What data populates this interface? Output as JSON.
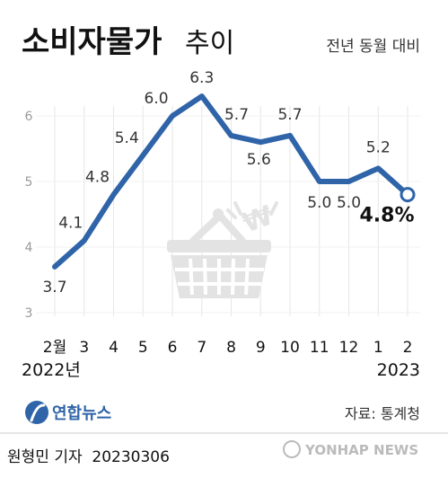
{
  "chart_data": {
    "type": "line",
    "title": "소비자물가",
    "title_suffix": "추이",
    "subtitle": "전년 동월 대비",
    "x": [
      "2월",
      "3",
      "4",
      "5",
      "6",
      "7",
      "8",
      "9",
      "10",
      "11",
      "12",
      "1",
      "2"
    ],
    "year_labels": [
      "2022년",
      "2023"
    ],
    "values": [
      3.7,
      4.1,
      4.8,
      5.4,
      6.0,
      6.3,
      5.7,
      5.6,
      5.7,
      5.0,
      5.0,
      5.2,
      4.8
    ],
    "value_labels": [
      "3.7",
      "4.1",
      "4.8",
      "5.4",
      "6.0",
      "6.3",
      "5.7",
      "5.6",
      "5.7",
      "5.0",
      "5.0",
      "5.2",
      "4.8%"
    ],
    "y_ticks": [
      "3",
      "4",
      "5",
      "6"
    ],
    "ylim": [
      3,
      6.3
    ],
    "grid": true,
    "line_color": "#2f64a8",
    "highlight_last": true
  },
  "footer": {
    "source": "자료: 통계청",
    "agency_logo": "연합뉴스",
    "credit": "원형민 기자  20230306",
    "watermark": "YONHAP NEWS"
  }
}
